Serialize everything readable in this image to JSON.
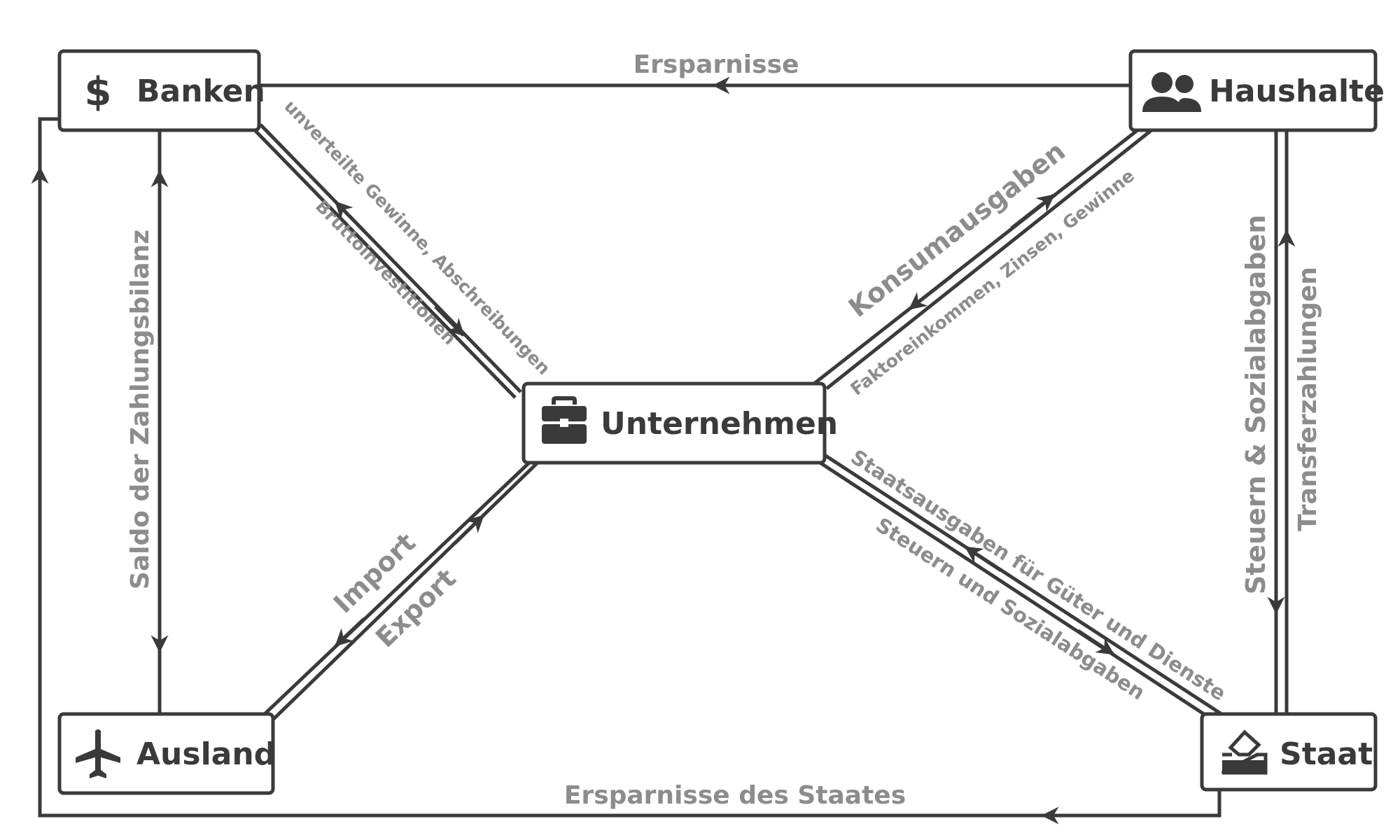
{
  "nodes": {
    "banken": {
      "label": "Banken",
      "icon": "dollar-icon"
    },
    "haushalte": {
      "label": "Haushalte",
      "icon": "people-icon"
    },
    "unternehmen": {
      "label": "Unternehmen",
      "icon": "briefcase-icon"
    },
    "ausland": {
      "label": "Ausland",
      "icon": "airplane-icon"
    },
    "staat": {
      "label": "Staat",
      "icon": "ballot-box-icon"
    }
  },
  "flows": {
    "ersparnisse": "Ersparnisse",
    "ersparnisse_staat": "Ersparnisse des Staates",
    "saldo_zahlungsbilanz": "Saldo der Zahlungsbilanz",
    "unverteilte_gewinne": "unverteilte Gewinne, Abschreibungen",
    "bruttoinvestitionen": "Bruttoinvestitionen",
    "konsumausgaben": "Konsumausgaben",
    "faktoreinkommen": "Faktoreinkommen, Zinsen, Gewinne",
    "steuern_sozialabgaben": "Steuern & Sozialabgaben",
    "transferzahlungen": "Transferzahlungen",
    "import": "Import",
    "export": "Export",
    "staatsausgaben": "Staatsausgaben für Güter und Dienste",
    "steuern_und_sozialabgaben": "Steuern und Sozialabgaben"
  },
  "colors": {
    "line": "#3a3a3a",
    "label": "#8c8c8c",
    "box_fill": "#ffffff"
  }
}
